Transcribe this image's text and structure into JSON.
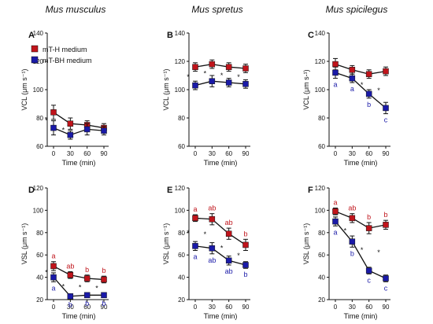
{
  "species": [
    "Mus musculus",
    "Mus spretus",
    "Mus spicilegus"
  ],
  "legend": [
    {
      "name": "mT-H medium",
      "color": "#c0141b"
    },
    {
      "name": "mT-BH medium",
      "color": "#1a1aa8"
    }
  ],
  "colors": {
    "mTH": "#c0141b",
    "mTBH": "#1a1aa8",
    "axis": "#111111",
    "line": "#111111"
  },
  "chart_data": [
    {
      "panel": "A",
      "type": "line",
      "xlabel": "Time (min)",
      "ylabel": "VCL (μm s⁻¹)",
      "x": [
        0,
        30,
        60,
        90
      ],
      "ylim": [
        60,
        140
      ],
      "yticks": [
        60,
        80,
        100,
        120,
        140
      ],
      "series": [
        {
          "name": "mT-H medium",
          "values": [
            84,
            76,
            75,
            73
          ],
          "err": [
            5,
            4,
            3,
            3
          ]
        },
        {
          "name": "mT-BH medium",
          "values": [
            73,
            68,
            72,
            71
          ],
          "err": [
            5,
            3,
            4,
            3
          ]
        }
      ],
      "annotations": [
        {
          "x": 0,
          "text": "*"
        },
        {
          "x": 30,
          "text": "*"
        }
      ]
    },
    {
      "panel": "B",
      "type": "line",
      "xlabel": "Time (min)",
      "ylabel": "VCL (μm s⁻¹)",
      "x": [
        0,
        30,
        60,
        90
      ],
      "ylim": [
        60,
        140
      ],
      "yticks": [
        60,
        80,
        100,
        120,
        140
      ],
      "series": [
        {
          "name": "mT-H medium",
          "values": [
            116,
            118,
            116,
            115
          ],
          "err": [
            3,
            3,
            3,
            3
          ]
        },
        {
          "name": "mT-BH medium",
          "values": [
            103,
            106,
            105,
            104
          ],
          "err": [
            3,
            4,
            3,
            3
          ]
        }
      ],
      "annotations": [
        {
          "x": 0,
          "text": "*"
        },
        {
          "x": 30,
          "text": "*"
        },
        {
          "x": 60,
          "text": "*"
        },
        {
          "x": 90,
          "text": "*"
        }
      ]
    },
    {
      "panel": "C",
      "type": "line",
      "xlabel": "Time (min)",
      "ylabel": "VCL (μm s-¹)",
      "x": [
        0,
        30,
        60,
        90
      ],
      "ylim": [
        60,
        140
      ],
      "yticks": [
        60,
        80,
        100,
        120,
        140
      ],
      "series": [
        {
          "name": "mT-H medium",
          "values": [
            118,
            114,
            111,
            113
          ],
          "err": [
            4,
            3,
            3,
            3
          ]
        },
        {
          "name": "mT-BH medium",
          "values": [
            112,
            108,
            97,
            87
          ],
          "err": [
            4,
            3,
            3,
            4
          ]
        }
      ],
      "annotations": [
        {
          "x": 60,
          "text": "*"
        },
        {
          "x": 90,
          "text": "*"
        }
      ],
      "letters": [
        {
          "x": 0,
          "series": 1,
          "text": "a"
        },
        {
          "x": 30,
          "series": 1,
          "text": "a"
        },
        {
          "x": 60,
          "series": 1,
          "text": "b"
        },
        {
          "x": 90,
          "series": 1,
          "text": "c"
        }
      ]
    },
    {
      "panel": "D",
      "type": "line",
      "xlabel": "Time (min)",
      "ylabel": "VSL (μm s⁻¹)",
      "x": [
        0,
        30,
        60,
        90
      ],
      "ylim": [
        20,
        120
      ],
      "yticks": [
        20,
        40,
        60,
        80,
        100,
        120
      ],
      "series": [
        {
          "name": "mT-H medium",
          "values": [
            50,
            42,
            39,
            38
          ],
          "err": [
            4,
            3,
            3,
            3
          ]
        },
        {
          "name": "mT-BH medium",
          "values": [
            40,
            23,
            24,
            24
          ],
          "err": [
            4,
            2,
            2,
            2
          ]
        }
      ],
      "annotations": [
        {
          "x": 0,
          "text": "*"
        },
        {
          "x": 30,
          "text": "*"
        },
        {
          "x": 60,
          "text": "*"
        },
        {
          "x": 90,
          "text": "*"
        }
      ],
      "letters": [
        {
          "x": 0,
          "series": 0,
          "text": "a"
        },
        {
          "x": 30,
          "series": 0,
          "text": "ab"
        },
        {
          "x": 60,
          "series": 0,
          "text": "b"
        },
        {
          "x": 90,
          "series": 0,
          "text": "b"
        },
        {
          "x": 0,
          "series": 1,
          "text": "a"
        },
        {
          "x": 30,
          "series": 1,
          "text": "b"
        },
        {
          "x": 60,
          "series": 1,
          "text": "b"
        },
        {
          "x": 90,
          "series": 1,
          "text": "b"
        }
      ]
    },
    {
      "panel": "E",
      "type": "line",
      "xlabel": "Time (min)",
      "ylabel": "VSL (μm s⁻¹)",
      "x": [
        0,
        30,
        60,
        90
      ],
      "ylim": [
        20,
        120
      ],
      "yticks": [
        20,
        40,
        60,
        80,
        100,
        120
      ],
      "series": [
        {
          "name": "mT-H medium",
          "values": [
            93,
            92,
            79,
            69
          ],
          "err": [
            3,
            5,
            5,
            5
          ]
        },
        {
          "name": "mT-BH medium",
          "values": [
            68,
            66,
            55,
            51
          ],
          "err": [
            4,
            5,
            4,
            3
          ]
        }
      ],
      "annotations": [
        {
          "x": 0,
          "text": "*"
        },
        {
          "x": 30,
          "text": "*"
        },
        {
          "x": 60,
          "text": "*"
        },
        {
          "x": 90,
          "text": "*"
        }
      ],
      "letters": [
        {
          "x": 0,
          "series": 0,
          "text": "a"
        },
        {
          "x": 30,
          "series": 0,
          "text": "ab"
        },
        {
          "x": 60,
          "series": 0,
          "text": "ab"
        },
        {
          "x": 90,
          "series": 0,
          "text": "b"
        },
        {
          "x": 0,
          "series": 1,
          "text": "a"
        },
        {
          "x": 30,
          "series": 1,
          "text": "ab"
        },
        {
          "x": 60,
          "series": 1,
          "text": "ab"
        },
        {
          "x": 90,
          "series": 1,
          "text": "b"
        }
      ]
    },
    {
      "panel": "F",
      "type": "line",
      "xlabel": "Time (min)",
      "ylabel": "VSL (μm s⁻¹)",
      "x": [
        0,
        30,
        60,
        90
      ],
      "ylim": [
        20,
        120
      ],
      "yticks": [
        20,
        40,
        60,
        80,
        100,
        120
      ],
      "series": [
        {
          "name": "mT-H medium",
          "values": [
            99,
            93,
            84,
            87
          ],
          "err": [
            3,
            4,
            5,
            4
          ]
        },
        {
          "name": "mT-BH medium",
          "values": [
            90,
            72,
            46,
            39
          ],
          "err": [
            4,
            5,
            3,
            3
          ]
        }
      ],
      "annotations": [
        {
          "x": 30,
          "text": "*"
        },
        {
          "x": 60,
          "text": "*"
        },
        {
          "x": 90,
          "text": "*"
        }
      ],
      "letters": [
        {
          "x": 0,
          "series": 0,
          "text": "a"
        },
        {
          "x": 30,
          "series": 0,
          "text": "ab"
        },
        {
          "x": 60,
          "series": 0,
          "text": "b"
        },
        {
          "x": 90,
          "series": 0,
          "text": "b"
        },
        {
          "x": 0,
          "series": 1,
          "text": "a"
        },
        {
          "x": 30,
          "series": 1,
          "text": "b"
        },
        {
          "x": 60,
          "series": 1,
          "text": "c"
        },
        {
          "x": 90,
          "series": 1,
          "text": "c"
        }
      ]
    }
  ]
}
